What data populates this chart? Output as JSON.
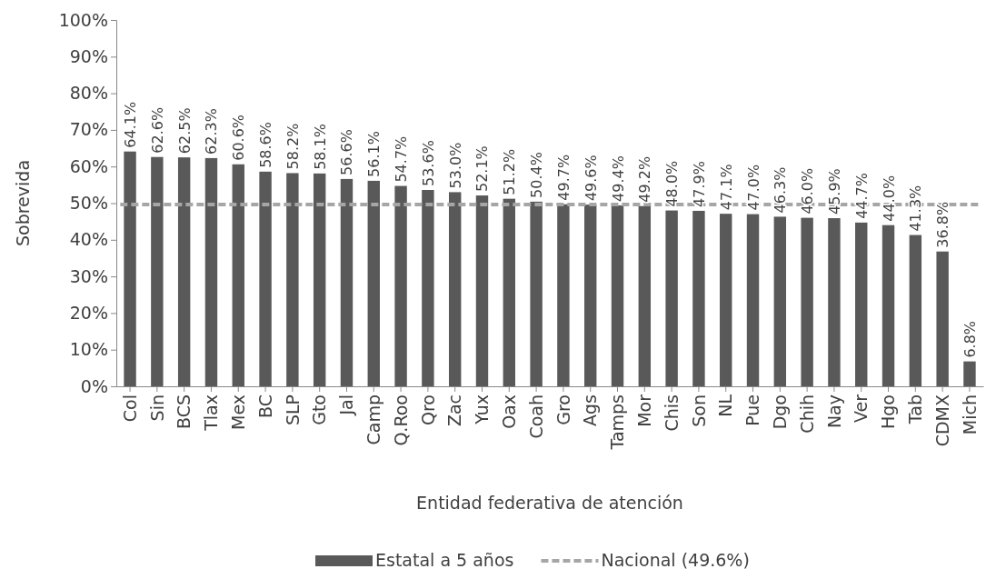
{
  "chart_data": {
    "type": "bar",
    "xlabel": "Entidad federativa de atención",
    "ylabel": "Sobrevida",
    "categories": [
      "Col",
      "Sin",
      "BCS",
      "Tlax",
      "Mex",
      "BC",
      "SLP",
      "Gto",
      "Jal",
      "Camp",
      "Q.Roo",
      "Qro",
      "Zac",
      "Yux",
      "Oax",
      "Coah",
      "Gro",
      "Ags",
      "Tamps",
      "Mor",
      "Chis",
      "Son",
      "NL",
      "Pue",
      "Dgo",
      "Chih",
      "Nay",
      "Ver",
      "Hgo",
      "Tab",
      "CDMX",
      "Mich"
    ],
    "series": [
      {
        "name": "Estatal a 5 años",
        "color": "#595959",
        "values": [
          64.1,
          62.6,
          62.5,
          62.3,
          60.6,
          58.6,
          58.2,
          58.1,
          56.6,
          56.1,
          54.7,
          53.6,
          53.0,
          52.1,
          51.2,
          50.4,
          49.7,
          49.6,
          49.4,
          49.2,
          48.0,
          47.9,
          47.1,
          47.0,
          46.3,
          46.0,
          45.9,
          44.7,
          44.0,
          41.3,
          36.8,
          6.8
        ],
        "value_labels": [
          "64.1%",
          "62.6%",
          "62.5%",
          "62.3%",
          "60.6%",
          "58.6%",
          "58.2%",
          "58.1%",
          "56.6%",
          "56.1%",
          "54.7%",
          "53.6%",
          "53.0%",
          "52.1%",
          "51.2%",
          "50.4%",
          "49.7%",
          "49.6%",
          "49.4%",
          "49.2%",
          "48.0%",
          "47.9%",
          "47.1%",
          "47.0%",
          "46.3%",
          "46.0%",
          "45.9%",
          "44.7%",
          "44.0%",
          "41.3%",
          "36.8%",
          "6.8%"
        ]
      }
    ],
    "ylim": [
      0,
      100
    ],
    "yticks": [
      {
        "value": 0,
        "label": "0%"
      },
      {
        "value": 10,
        "label": "10%"
      },
      {
        "value": 20,
        "label": "20%"
      },
      {
        "value": 30,
        "label": "30%"
      },
      {
        "value": 40,
        "label": "40%"
      },
      {
        "value": 50,
        "label": "50%"
      },
      {
        "value": 60,
        "label": "60%"
      },
      {
        "value": 70,
        "label": "70%"
      },
      {
        "value": 80,
        "label": "80%"
      },
      {
        "value": 90,
        "label": "90%"
      },
      {
        "value": 100,
        "label": "100%"
      }
    ],
    "ref_lines": [
      {
        "axis": "y",
        "value": 49.6,
        "label": "Nacional (49.6%)",
        "color": "#a6a6a6",
        "line_style": "dashed"
      }
    ],
    "legend": "bottom",
    "grid": false
  }
}
